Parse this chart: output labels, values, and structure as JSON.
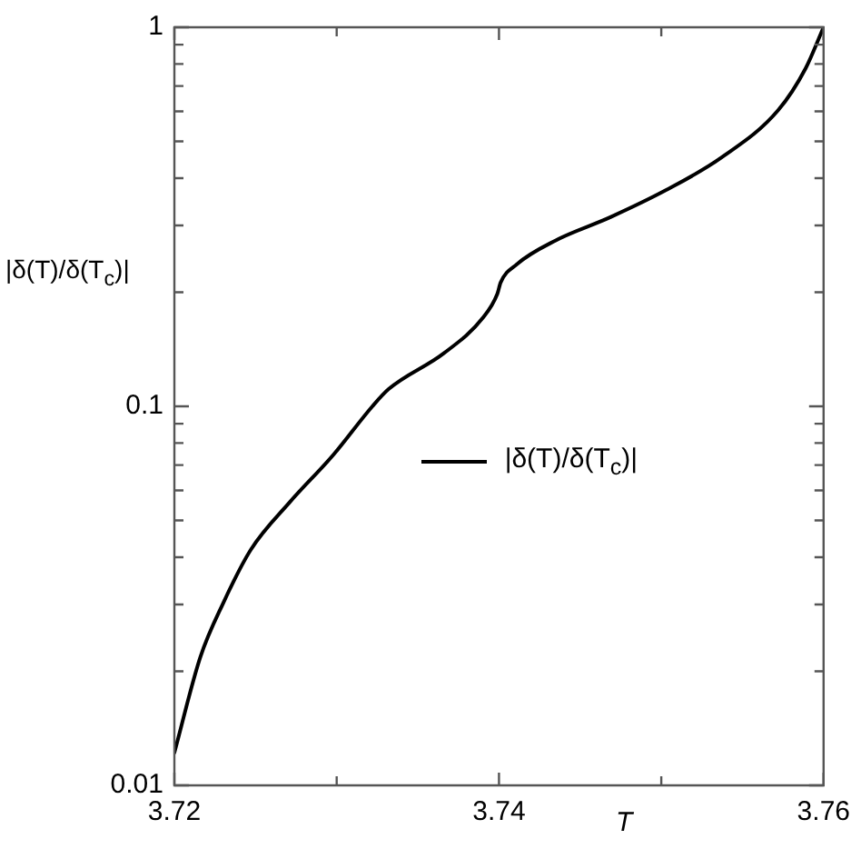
{
  "chart_data": {
    "type": "line",
    "xlabel": "T",
    "ylabel": "|δ(T)/δ(T$_{c}$)|",
    "log": "y",
    "legend": "right",
    "grid": false,
    "line_style": "solid",
    "marker": "none",
    "xlim": [
      3.72,
      3.76
    ],
    "xticks": [
      3.72,
      {
        "value": 3.73,
        "label": null
      },
      3.74,
      {
        "value": 3.75,
        "label": null
      },
      3.76
    ],
    "ylim": [
      0.01,
      1
    ],
    "yticks": [
      0.01,
      {
        "value": 0.02,
        "label": null
      },
      {
        "value": 0.03,
        "label": null
      },
      {
        "value": 0.04,
        "label": null
      },
      {
        "value": 0.05,
        "label": null
      },
      {
        "value": 0.06,
        "label": null
      },
      {
        "value": 0.07,
        "label": null
      },
      {
        "value": 0.08,
        "label": null
      },
      {
        "value": 0.09,
        "label": null
      },
      0.1,
      {
        "value": 0.2,
        "label": null
      },
      {
        "value": 0.3,
        "label": null
      },
      {
        "value": 0.4,
        "label": null
      },
      {
        "value": 0.5,
        "label": null
      },
      {
        "value": 0.6,
        "label": null
      },
      {
        "value": 0.7,
        "label": null
      },
      {
        "value": 0.8,
        "label": null
      },
      {
        "value": 0.9,
        "label": null
      },
      1
    ],
    "series": [
      {
        "name": "|δ(T)/δ(T$_{c}$)|",
        "color": "#000000",
        "x": [
          3.72,
          3.7216,
          3.723,
          3.7247,
          3.7271,
          3.7298,
          3.7322,
          3.7332,
          3.7366,
          3.739,
          3.7399,
          3.7401,
          3.7411,
          3.7435,
          3.7469,
          3.7503,
          3.7537,
          3.7572,
          3.7589,
          3.76
        ],
        "values": [
          0.0122,
          0.0218,
          0.0302,
          0.0418,
          0.0558,
          0.0745,
          0.1,
          0.111,
          0.138,
          0.171,
          0.198,
          0.212,
          0.237,
          0.274,
          0.316,
          0.372,
          0.453,
          0.604,
          0.78,
          1
        ]
      }
    ]
  }
}
